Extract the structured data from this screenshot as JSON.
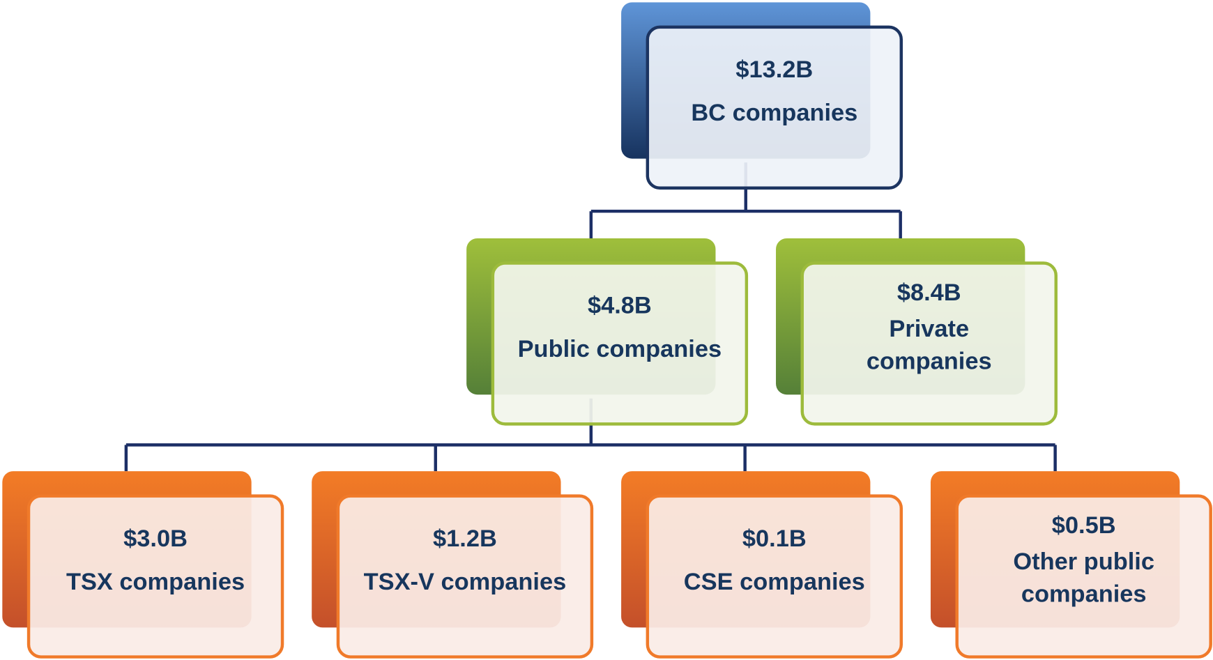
{
  "nodes": [
    {
      "amount": "$13.2B",
      "label": "BC companies"
    },
    {
      "amount": "$4.8B",
      "label": "Public companies"
    },
    {
      "amount": "$8.4B",
      "label": "Private companies"
    },
    {
      "amount": "$3.0B",
      "label": "TSX companies"
    },
    {
      "amount": "$1.2B",
      "label": "TSX-V companies"
    },
    {
      "amount": "$0.1B",
      "label": "CSE companies"
    },
    {
      "amount": "$0.5B",
      "label": "Other public companies"
    }
  ]
}
